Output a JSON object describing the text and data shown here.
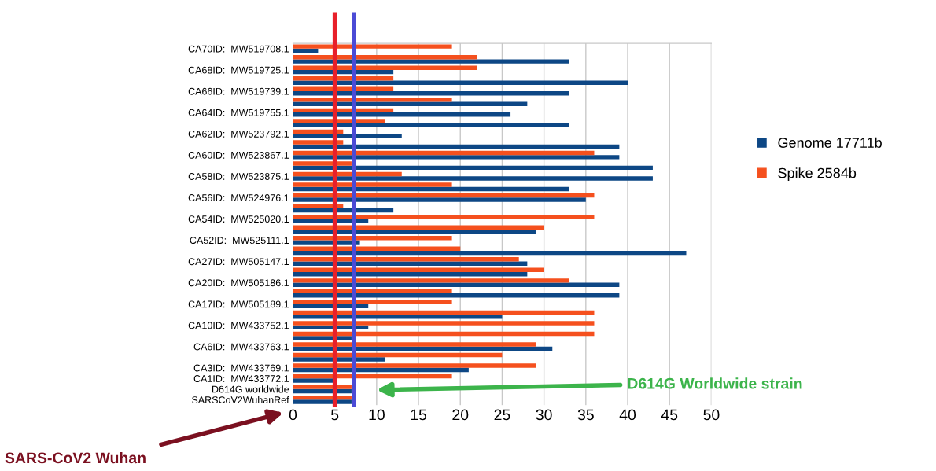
{
  "chart_data": {
    "type": "bar",
    "orientation": "horizontal",
    "categories": [
      "CA70ID:  MW519708.1",
      null,
      "CA68ID:  MW519725.1",
      null,
      "CA66ID:  MW519739.1",
      null,
      "CA64ID:  MW519755.1",
      null,
      "CA62ID:  MW523792.1",
      null,
      "CA60ID:  MW523867.1",
      null,
      "CA58ID:  MW523875.1",
      null,
      "CA56ID:  MW524976.1",
      null,
      "CA54ID:  MW525020.1",
      null,
      "CA52ID:  MW525111.1",
      null,
      "CA27ID:  MW505147.1",
      null,
      "CA20ID:  MW505186.1",
      null,
      "CA17ID:  MW505189.1",
      null,
      "CA10ID:  MW433752.1",
      null,
      "CA6ID:  MW433763.1",
      null,
      "CA3ID:  MW433769.1",
      "CA1ID:  MW433772.1",
      "D614G worldwide",
      "SARSCoV2WuhanRef"
    ],
    "series": [
      {
        "name": "Genome 17711b",
        "color": "#0d4785",
        "values": [
          3,
          33,
          12,
          40,
          33,
          28,
          26,
          33,
          13,
          39,
          39,
          43,
          43,
          33,
          35,
          12,
          9,
          29,
          8,
          47,
          28,
          28,
          39,
          39,
          9,
          25,
          9,
          7,
          31,
          11,
          21,
          5,
          7,
          7
        ]
      },
      {
        "name": "Spike 2584b",
        "color": "#f5501e",
        "values": [
          19,
          22,
          22,
          12,
          12,
          19,
          12,
          11,
          6,
          6,
          36,
          7,
          13,
          19,
          36,
          6,
          36,
          30,
          19,
          20,
          27,
          30,
          33,
          19,
          19,
          36,
          36,
          36,
          29,
          25,
          29,
          19,
          7,
          7
        ]
      }
    ],
    "xlim": [
      0,
      50
    ],
    "xticks": [
      0,
      5,
      10,
      15,
      20,
      25,
      30,
      35,
      40,
      45,
      50
    ],
    "grid": "x",
    "legend": "right",
    "ref_lines": [
      {
        "axis": "x",
        "value": 5,
        "color": "#e8202a"
      },
      {
        "axis": "x",
        "value": 7.3,
        "color": "#4b4bd6"
      }
    ],
    "annotations": [
      "D614G Worldwide strain",
      "SARS-CoV2 Wuhan"
    ]
  }
}
